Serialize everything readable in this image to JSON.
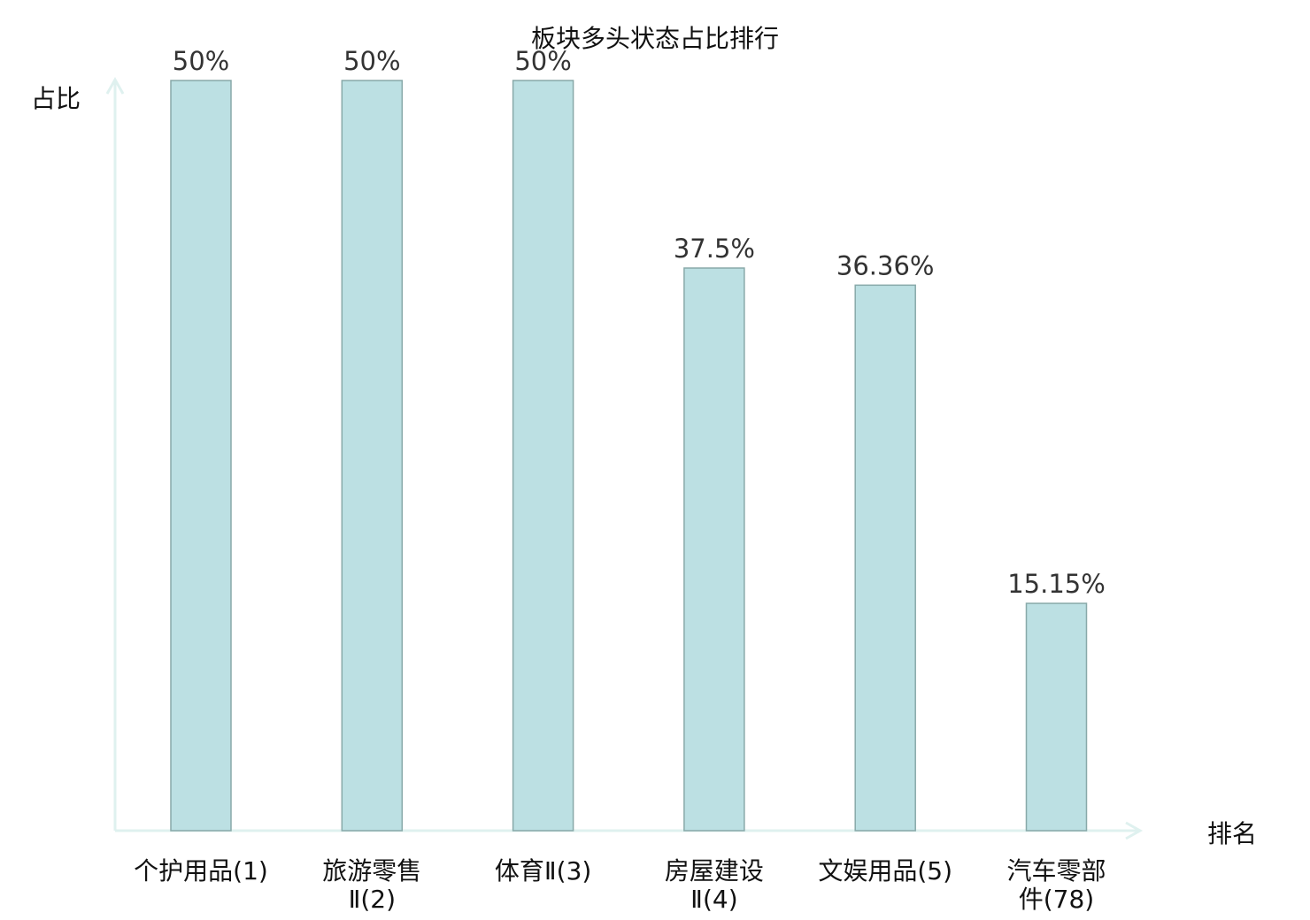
{
  "chart_data": {
    "type": "bar",
    "title": "板块多头状态占比排行",
    "xlabel": "排名",
    "ylabel": "占比",
    "categories": [
      [
        "个护用品(1)"
      ],
      [
        "旅游零售",
        "Ⅱ(2)"
      ],
      [
        "体育Ⅱ(3)"
      ],
      [
        "房屋建设",
        "Ⅱ(4)"
      ],
      [
        "文娱用品(5)"
      ],
      [
        "汽车零部",
        "件(78)"
      ]
    ],
    "values": [
      50,
      50,
      50,
      37.5,
      36.36,
      15.15
    ],
    "value_labels": [
      "50%",
      "50%",
      "50%",
      "37.5%",
      "36.36%",
      "15.15%"
    ],
    "highlight_index": 5,
    "ylim": [
      0,
      50
    ],
    "grid": false,
    "colors": {
      "bar_fill": "#bce0e3",
      "bar_stroke": "#88a9a9",
      "axis": "#dff1ef",
      "highlight_label": "#e8161b",
      "label": "#111111"
    }
  }
}
